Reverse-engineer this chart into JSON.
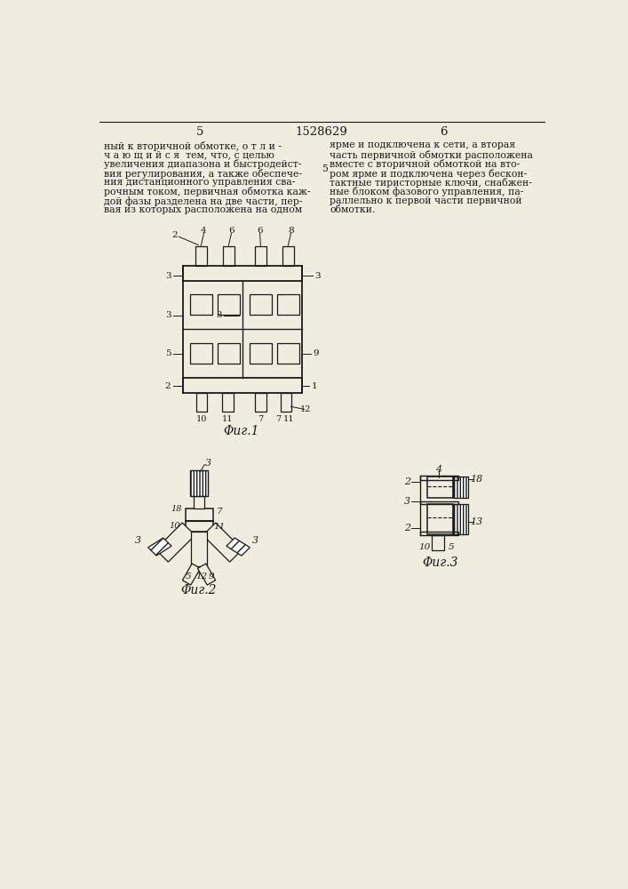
{
  "bg_color": "#f0ece0",
  "page_number_left": "5",
  "page_number_center": "1528629",
  "page_number_right": "6",
  "text_left": "ный к вторичной обмотке, о т л и -\nч а ю щ и й с я  тем, что, с целью\nувеличения диапазона и быстродейст-\nвия регулирования, а также обеспече-\nния дистанционного управления сва-\nрочным током, первичная обмотка каж-\nдой фазы разделена на две части, пер-\nвая из которых расположена на одном",
  "text_right": "ярме и подключена к сети, а вторая\nчасть первичной обмотки расположена\nвместе с вторичной обмоткой на вто-\nром ярме и подключена через бескон-\nтактные тиристорные ключи, снабжен-\nные блоком фазового управления, па-\nраллельно к первой части первичной\nобмотки.",
  "fig1_caption": "Φиг.1",
  "fig2_caption": "Φиг.2",
  "fig3_caption": "Φиг.3",
  "line_color": "#1a1a1a",
  "text_color": "#1a1a1a",
  "font_size_body": 7.8,
  "font_size_label": 7.0,
  "font_size_pagenum": 9.5
}
